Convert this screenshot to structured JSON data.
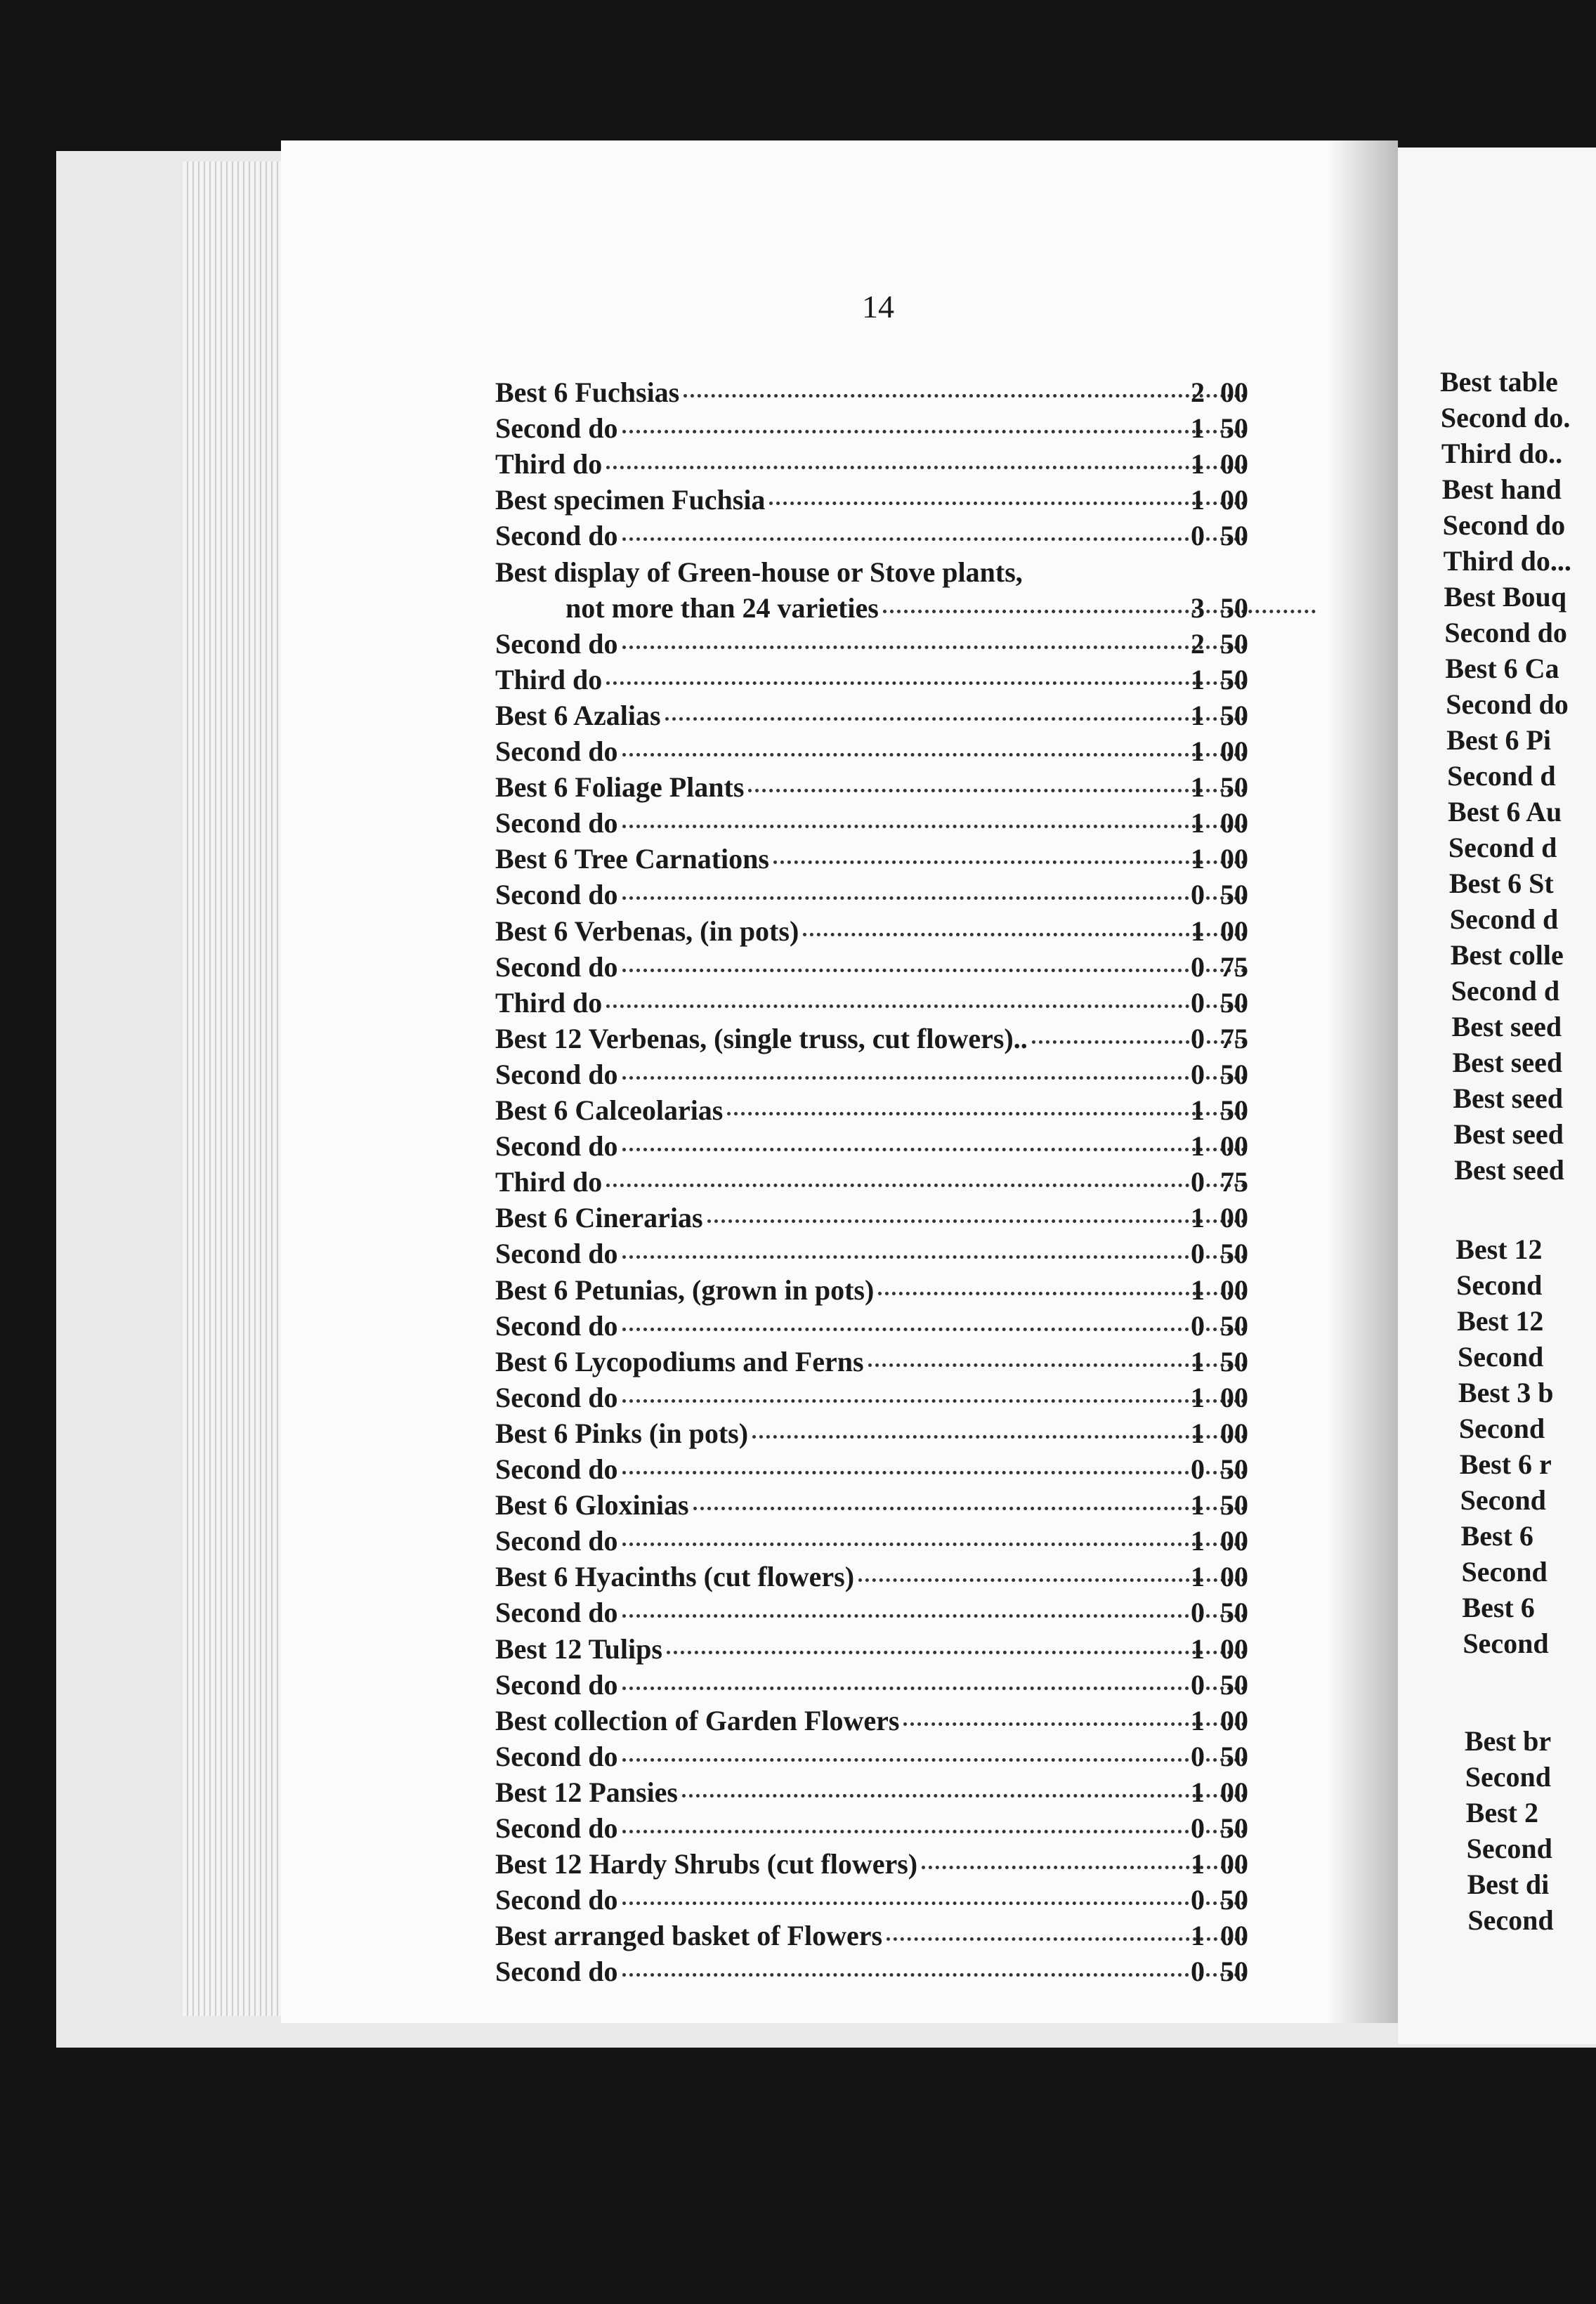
{
  "page_number": "14",
  "left_page": {
    "rows": [
      {
        "label": "Best 6 Fuchsias",
        "dollars": "2",
        "cents": "00"
      },
      {
        "label": "Second do",
        "dollars": "1",
        "cents": "50"
      },
      {
        "label": "Third do",
        "dollars": "1",
        "cents": "00"
      },
      {
        "label": "Best specimen Fuchsia",
        "dollars": "1",
        "cents": "00"
      },
      {
        "label": "Second do",
        "dollars": "0",
        "cents": "50"
      },
      {
        "label": "Best display of Green-house or Stove plants,",
        "dollars": null,
        "cents": null
      },
      {
        "label": "not more than 24 varieties",
        "dollars": "3",
        "cents": "50"
      },
      {
        "label": "Second do",
        "dollars": "2",
        "cents": "50"
      },
      {
        "label": "Third do",
        "dollars": "1",
        "cents": "50"
      },
      {
        "label": "Best 6 Azalias",
        "dollars": "1",
        "cents": "50"
      },
      {
        "label": "Second do",
        "dollars": "1",
        "cents": "00"
      },
      {
        "label": "Best 6 Foliage Plants",
        "dollars": "1",
        "cents": "50"
      },
      {
        "label": "Second do",
        "dollars": "1",
        "cents": "00"
      },
      {
        "label": "Best 6 Tree Carnations",
        "dollars": "1",
        "cents": "00"
      },
      {
        "label": "Second do",
        "dollars": "0",
        "cents": "50"
      },
      {
        "label": "Best 6 Verbenas, (in pots)",
        "dollars": "1",
        "cents": "00"
      },
      {
        "label": "Second do",
        "dollars": "0",
        "cents": "75"
      },
      {
        "label": "Third do",
        "dollars": "0",
        "cents": "50"
      },
      {
        "label": "Best 12 Verbenas, (single truss, cut flowers)..",
        "dollars": "0",
        "cents": "75"
      },
      {
        "label": "Second do",
        "dollars": "0",
        "cents": "50"
      },
      {
        "label": "Best 6 Calceolarias",
        "dollars": "1",
        "cents": "50"
      },
      {
        "label": "Second do",
        "dollars": "1",
        "cents": "00"
      },
      {
        "label": "Third do",
        "dollars": "0",
        "cents": "75"
      },
      {
        "label": "Best 6 Cinerarias",
        "dollars": "1",
        "cents": "00"
      },
      {
        "label": "Second do",
        "dollars": "0",
        "cents": "50"
      },
      {
        "label": "Best 6 Petunias, (grown in pots)",
        "dollars": "1",
        "cents": "00"
      },
      {
        "label": "Second do",
        "dollars": "0",
        "cents": "50"
      },
      {
        "label": "Best 6 Lycopodiums and Ferns",
        "dollars": "1",
        "cents": "50"
      },
      {
        "label": "Second do",
        "dollars": "1",
        "cents": "00"
      },
      {
        "label": "Best 6 Pinks (in pots)",
        "dollars": "1",
        "cents": "00"
      },
      {
        "label": "Second do",
        "dollars": "0",
        "cents": "50"
      },
      {
        "label": "Best 6 Gloxinias",
        "dollars": "1",
        "cents": "50"
      },
      {
        "label": "Second do",
        "dollars": "1",
        "cents": "00"
      },
      {
        "label": "Best 6 Hyacinths (cut flowers)",
        "dollars": "1",
        "cents": "00"
      },
      {
        "label": "Second do",
        "dollars": "0",
        "cents": "50"
      },
      {
        "label": "Best 12 Tulips",
        "dollars": "1",
        "cents": "00"
      },
      {
        "label": "Second do",
        "dollars": "0",
        "cents": "50"
      },
      {
        "label": "Best collection of Garden Flowers",
        "dollars": "1",
        "cents": "00"
      },
      {
        "label": "Second do",
        "dollars": "0",
        "cents": "50"
      },
      {
        "label": "Best 12 Pansies",
        "dollars": "1",
        "cents": "00"
      },
      {
        "label": "Second do",
        "dollars": "0",
        "cents": "50"
      },
      {
        "label": "Best 12 Hardy Shrubs (cut flowers)",
        "dollars": "1",
        "cents": "00"
      },
      {
        "label": "Second do",
        "dollars": "0",
        "cents": "50"
      },
      {
        "label": "Best arranged basket of Flowers",
        "dollars": "1",
        "cents": "00"
      },
      {
        "label": "Second do",
        "dollars": "0",
        "cents": "50"
      }
    ]
  },
  "right_page": {
    "groups": [
      [
        "Best table",
        "Second do.",
        "Third do..",
        "Best hand",
        "Second do",
        "Third do...",
        "Best Bouq",
        "Second do",
        "Best 6 Ca",
        "Second do",
        "Best 6 Pi",
        "Second d",
        "Best 6 Au",
        "Second d",
        "Best 6 St",
        "Second d",
        "Best colle",
        "Second d",
        "Best seed",
        "Best seed",
        "Best seed",
        "Best seed",
        "Best seed"
      ],
      [
        "Best 12",
        "Second",
        "Best 12",
        "Second",
        "Best 3 b",
        "Second",
        "Best 6 r",
        "Second",
        "Best 6",
        "Second",
        "Best 6",
        "Second"
      ],
      [
        "Best br",
        "Second",
        "Best 2",
        "Second",
        "Best di",
        "Second"
      ]
    ]
  }
}
